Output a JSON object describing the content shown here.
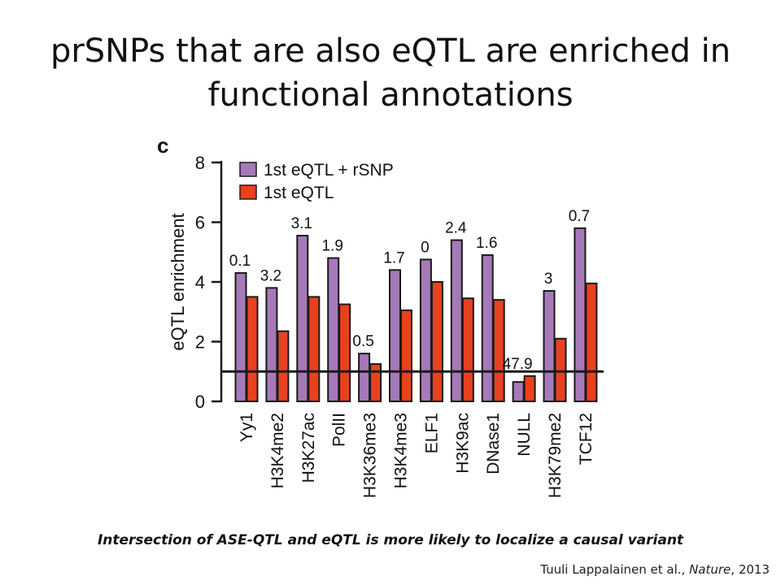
{
  "slide": {
    "title_line1": "prSNPs that are also eQTL are enriched in",
    "title_line2": "functional annotations",
    "caption": "Intersection of ASE-QTL and eQTL is more likely to localize a causal variant",
    "citation_authors": "Tuuli Lappalainen et al., ",
    "citation_journal": "Nature",
    "citation_year": ", 2013"
  },
  "chart_data": {
    "type": "bar",
    "panel_label": "c",
    "ylabel": "eQTL enrichment",
    "xlabel": "",
    "ylim": [
      0,
      8
    ],
    "yticks": [
      0,
      2,
      4,
      6,
      8
    ],
    "reference_line": 1,
    "legend_position": "top-left",
    "categories": [
      "Yy1",
      "H3K4me2",
      "H3K27ac",
      "PolII",
      "H3K36me3",
      "H3K4me3",
      "ELF1",
      "H3K9ac",
      "DNase1",
      "NULL",
      "H3K79me2",
      "TCF12"
    ],
    "bar_annotations": [
      "0.1",
      "3.2",
      "3.1",
      "1.9",
      "0.5",
      "1.7",
      "0",
      "2.4",
      "1.6",
      "47.9",
      "3",
      "0.7"
    ],
    "series": [
      {
        "name": "1st eQTL + rSNP",
        "color": "#a679b8",
        "values": [
          4.3,
          3.8,
          5.55,
          4.8,
          1.6,
          4.4,
          4.75,
          5.4,
          4.9,
          0.65,
          3.7,
          5.8
        ]
      },
      {
        "name": "1st eQTL",
        "color": "#e8411f",
        "values": [
          3.5,
          2.35,
          3.5,
          3.25,
          1.25,
          3.05,
          4.0,
          3.45,
          3.4,
          0.85,
          2.1,
          3.95
        ]
      }
    ]
  }
}
